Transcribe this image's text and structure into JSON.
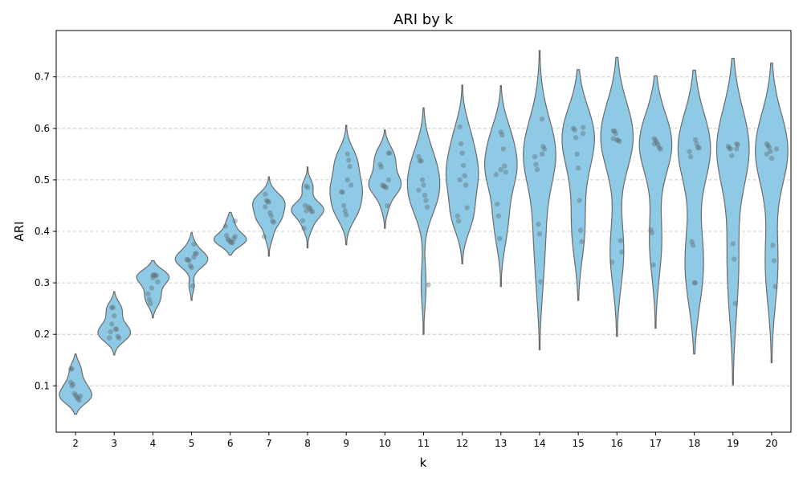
{
  "colors": {
    "violin_fill": "#8ecae6",
    "violin_edge": "#6b6b6b",
    "point": "#5f6a6f",
    "grid": "#cccccc"
  },
  "chart_data": {
    "type": "violin",
    "title": "ARI by k",
    "xlabel": "k",
    "ylabel": "ARI",
    "ylim": [
      0.01,
      0.79
    ],
    "y_ticks": [
      "0.1",
      "0.2",
      "0.3",
      "0.4",
      "0.5",
      "0.6",
      "0.7"
    ],
    "grid": "horizontal dashed",
    "categories": [
      "2",
      "3",
      "4",
      "5",
      "6",
      "7",
      "8",
      "9",
      "10",
      "11",
      "12",
      "13",
      "14",
      "15",
      "16",
      "17",
      "18",
      "19",
      "20"
    ],
    "groups": [
      {
        "k": "2",
        "min": 0.045,
        "max": 0.162,
        "median": 0.085,
        "points": [
          0.133,
          0.133,
          0.103,
          0.085,
          0.082,
          0.078,
          0.075,
          0.072,
          0.08,
          0.107,
          0.1
        ]
      },
      {
        "k": "3",
        "min": 0.16,
        "max": 0.283,
        "median": 0.21,
        "points": [
          0.252,
          0.252,
          0.236,
          0.21,
          0.21,
          0.196,
          0.193,
          0.193,
          0.205,
          0.22
        ]
      },
      {
        "k": "4",
        "min": 0.232,
        "max": 0.343,
        "median": 0.305,
        "points": [
          0.315,
          0.315,
          0.315,
          0.314,
          0.302,
          0.279,
          0.268,
          0.26,
          0.29,
          0.31
        ]
      },
      {
        "k": "5",
        "min": 0.266,
        "max": 0.398,
        "median": 0.345,
        "points": [
          0.375,
          0.357,
          0.357,
          0.345,
          0.345,
          0.343,
          0.333,
          0.33,
          0.294,
          0.35
        ]
      },
      {
        "k": "6",
        "min": 0.354,
        "max": 0.437,
        "median": 0.385,
        "points": [
          0.42,
          0.41,
          0.392,
          0.385,
          0.383,
          0.38,
          0.378,
          0.378,
          0.386,
          0.39
        ]
      },
      {
        "k": "7",
        "min": 0.352,
        "max": 0.506,
        "median": 0.445,
        "points": [
          0.472,
          0.46,
          0.458,
          0.457,
          0.436,
          0.43,
          0.42,
          0.418,
          0.39,
          0.448
        ]
      },
      {
        "k": "8",
        "min": 0.368,
        "max": 0.525,
        "median": 0.445,
        "points": [
          0.488,
          0.485,
          0.447,
          0.445,
          0.44,
          0.438,
          0.421,
          0.406,
          0.45,
          0.44
        ]
      },
      {
        "k": "9",
        "min": 0.374,
        "max": 0.606,
        "median": 0.48,
        "points": [
          0.55,
          0.538,
          0.526,
          0.49,
          0.477,
          0.476,
          0.45,
          0.44,
          0.432,
          0.5
        ]
      },
      {
        "k": "10",
        "min": 0.406,
        "max": 0.597,
        "median": 0.5,
        "points": [
          0.552,
          0.552,
          0.53,
          0.525,
          0.49,
          0.488,
          0.487,
          0.485,
          0.45,
          0.5
        ]
      },
      {
        "k": "11",
        "min": 0.2,
        "max": 0.64,
        "median": 0.49,
        "points": [
          0.545,
          0.537,
          0.537,
          0.5,
          0.49,
          0.47,
          0.46,
          0.447,
          0.296,
          0.48
        ]
      },
      {
        "k": "12",
        "min": 0.337,
        "max": 0.684,
        "median": 0.51,
        "points": [
          0.603,
          0.57,
          0.552,
          0.528,
          0.508,
          0.49,
          0.446,
          0.43,
          0.42,
          0.5
        ]
      },
      {
        "k": "13",
        "min": 0.293,
        "max": 0.683,
        "median": 0.52,
        "points": [
          0.593,
          0.587,
          0.56,
          0.527,
          0.515,
          0.51,
          0.453,
          0.43,
          0.386,
          0.52
        ]
      },
      {
        "k": "14",
        "min": 0.17,
        "max": 0.751,
        "median": 0.54,
        "points": [
          0.618,
          0.565,
          0.56,
          0.545,
          0.53,
          0.52,
          0.414,
          0.395,
          0.302,
          0.55
        ]
      },
      {
        "k": "15",
        "min": 0.266,
        "max": 0.714,
        "median": 0.58,
        "points": [
          0.602,
          0.6,
          0.597,
          0.582,
          0.55,
          0.523,
          0.46,
          0.402,
          0.38,
          0.59
        ]
      },
      {
        "k": "16",
        "min": 0.196,
        "max": 0.738,
        "median": 0.585,
        "points": [
          0.595,
          0.595,
          0.59,
          0.578,
          0.577,
          0.575,
          0.382,
          0.36,
          0.34,
          0.58
        ]
      },
      {
        "k": "17",
        "min": 0.212,
        "max": 0.702,
        "median": 0.565,
        "points": [
          0.58,
          0.577,
          0.572,
          0.568,
          0.562,
          0.56,
          0.403,
          0.397,
          0.335,
          0.57
        ]
      },
      {
        "k": "18",
        "min": 0.162,
        "max": 0.713,
        "median": 0.56,
        "points": [
          0.578,
          0.57,
          0.563,
          0.562,
          0.555,
          0.545,
          0.38,
          0.373,
          0.3,
          0.3
        ]
      },
      {
        "k": "19",
        "min": 0.102,
        "max": 0.736,
        "median": 0.56,
        "points": [
          0.57,
          0.568,
          0.565,
          0.562,
          0.56,
          0.547,
          0.376,
          0.346,
          0.26,
          0.56
        ]
      },
      {
        "k": "20",
        "min": 0.145,
        "max": 0.727,
        "median": 0.555,
        "points": [
          0.57,
          0.567,
          0.563,
          0.555,
          0.542,
          0.373,
          0.343,
          0.293,
          0.56,
          0.55
        ]
      }
    ]
  }
}
